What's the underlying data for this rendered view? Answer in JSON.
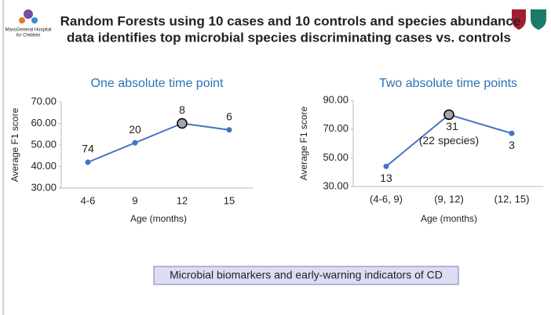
{
  "slide_title": [
    "Random Forests using 10 cases and 10 controls and species abundance",
    "data identifies top microbial species discriminating cases vs. controls"
  ],
  "logo_text": [
    "MassGeneral Hospital",
    "for Children"
  ],
  "banner": "Microbial biomarkers and early-warning indicators of CD",
  "chart_data": [
    {
      "type": "line",
      "title": "One absolute time point",
      "x_label": "Age (months)",
      "y_label": "Average F1 score",
      "categories": [
        "4-6",
        "9",
        "12",
        "15"
      ],
      "values": [
        42,
        51,
        60,
        57
      ],
      "color": "#4472c4",
      "annotations": [
        [
          "74"
        ],
        [
          "20"
        ],
        [
          "8"
        ],
        [
          "6"
        ]
      ],
      "highlight_index": 2,
      "ylim": [
        30,
        70
      ],
      "yticks": [
        {
          "value": 30,
          "label": "30.00"
        },
        {
          "value": 40,
          "label": "40.00"
        },
        {
          "value": 50,
          "label": "50.00"
        },
        {
          "value": 60,
          "label": "60.00"
        },
        {
          "value": 70,
          "label": "70.00"
        }
      ],
      "grid": false
    },
    {
      "type": "line",
      "title": "Two absolute time points",
      "x_label": "Age (months)",
      "y_label": "Average F1 score",
      "categories": [
        "(4-6, 9)",
        "(9, 12)",
        "(12, 15)"
      ],
      "values": [
        44,
        80,
        67
      ],
      "color": "#4472c4",
      "annotations": [
        [
          "13"
        ],
        [
          "31",
          "(22 species)"
        ],
        [
          "3"
        ]
      ],
      "highlight_index": 1,
      "ylim": [
        30,
        90
      ],
      "yticks": [
        {
          "value": 30,
          "label": "30.00"
        },
        {
          "value": 50,
          "label": "50.00"
        },
        {
          "value": 70,
          "label": "70.00"
        },
        {
          "value": 90,
          "label": "90.00"
        }
      ],
      "grid": false
    }
  ]
}
